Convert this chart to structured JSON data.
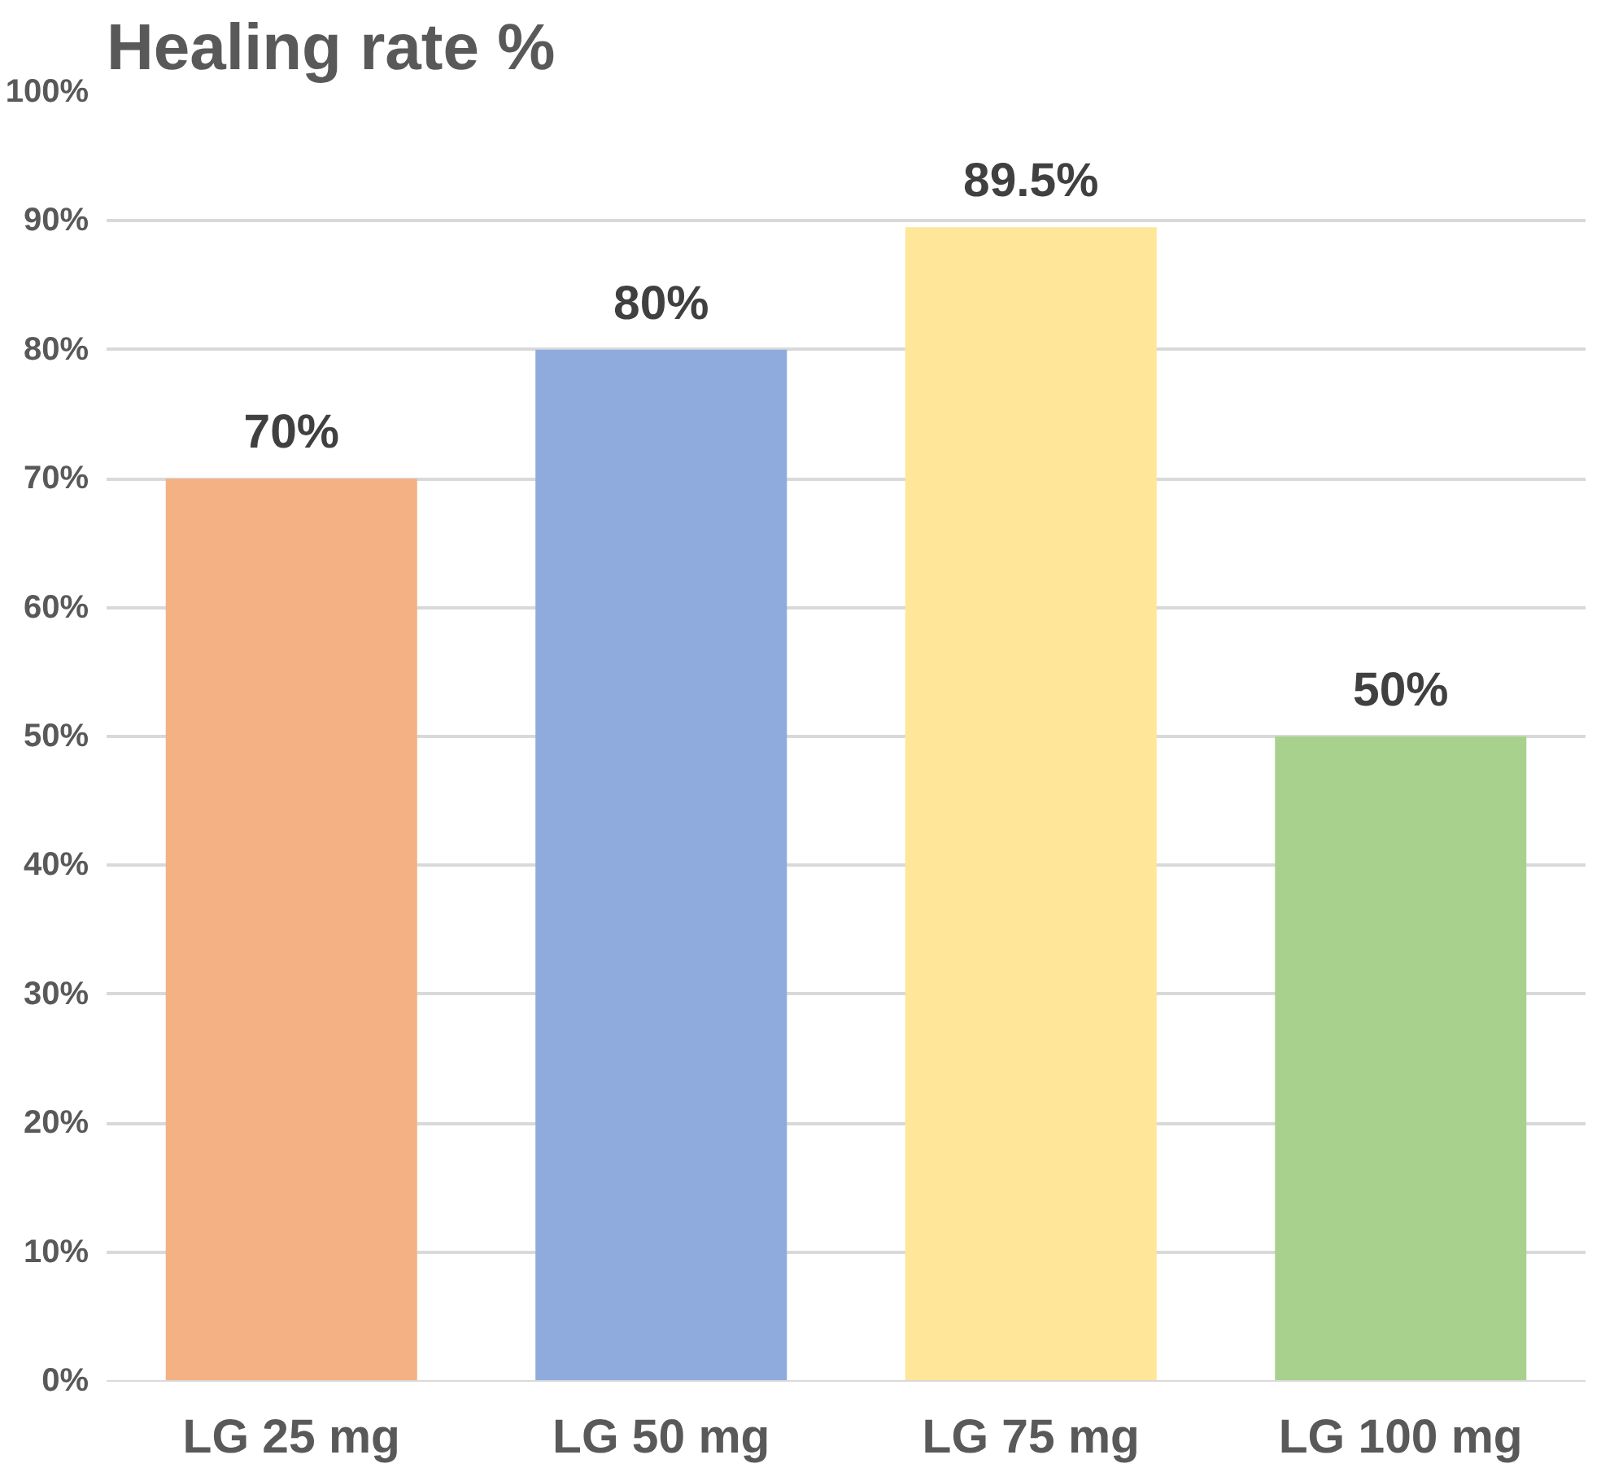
{
  "chart_data": {
    "type": "bar",
    "title": "Healing rate %",
    "categories": [
      "LG 25 mg",
      "LG 50 mg",
      "LG 75 mg",
      "LG 100 mg"
    ],
    "values": [
      70,
      80,
      89.5,
      50
    ],
    "colors": [
      "#f4b183",
      "#8faadc",
      "#ffe699",
      "#a9d18e"
    ],
    "value_labels": [
      "70%",
      "80%",
      "89.5%",
      "50%"
    ],
    "ylim": [
      0,
      100
    ],
    "yticks": [
      {
        "value": 0,
        "label": "0%"
      },
      {
        "value": 10,
        "label": "10%"
      },
      {
        "value": 20,
        "label": "20%"
      },
      {
        "value": 30,
        "label": "30%"
      },
      {
        "value": 40,
        "label": "40%"
      },
      {
        "value": 50,
        "label": "50%"
      },
      {
        "value": 60,
        "label": "60%"
      },
      {
        "value": 70,
        "label": "70%"
      },
      {
        "value": 80,
        "label": "80%"
      },
      {
        "value": 90,
        "label": "90%"
      },
      {
        "value": 100,
        "label": "100%"
      }
    ],
    "grid": "y"
  }
}
